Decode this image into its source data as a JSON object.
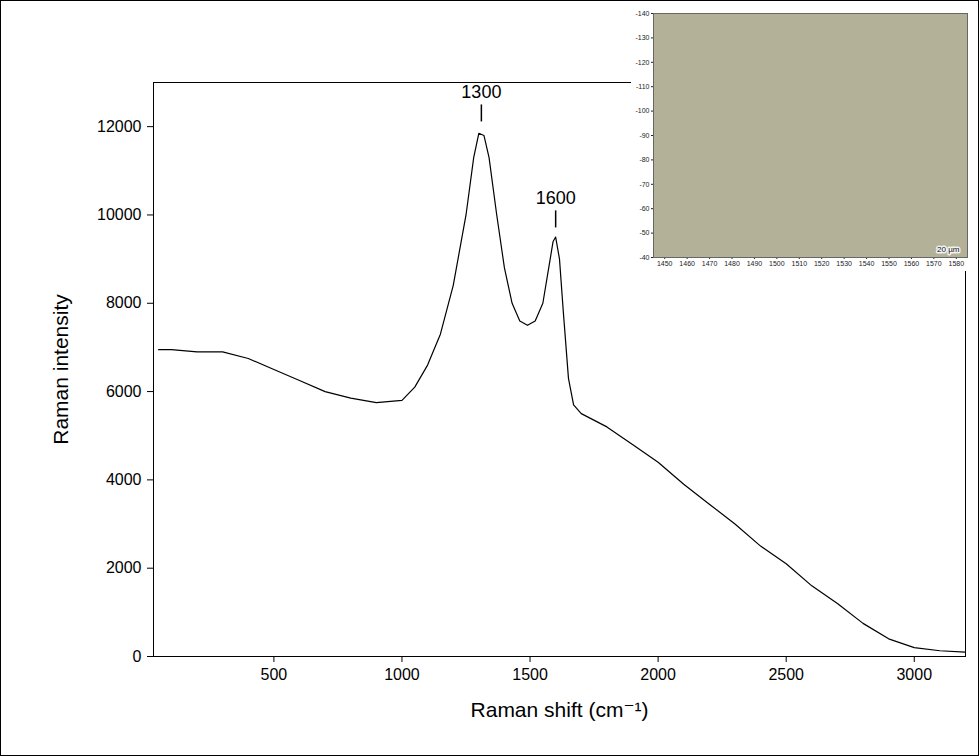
{
  "chart_data": [
    {
      "type": "line",
      "xlabel": "Raman shift (cm⁻¹)",
      "ylabel": "Raman intensity",
      "x": [
        50,
        100,
        200,
        300,
        400,
        500,
        600,
        700,
        800,
        900,
        1000,
        1050,
        1100,
        1150,
        1200,
        1250,
        1280,
        1300,
        1320,
        1340,
        1370,
        1400,
        1430,
        1460,
        1490,
        1520,
        1550,
        1570,
        1590,
        1600,
        1615,
        1630,
        1650,
        1670,
        1700,
        1800,
        1900,
        2000,
        2100,
        2200,
        2300,
        2400,
        2500,
        2600,
        2700,
        2800,
        2900,
        3000,
        3100,
        3200
      ],
      "values": [
        6950,
        6950,
        6900,
        6900,
        6750,
        6500,
        6250,
        6000,
        5850,
        5750,
        5800,
        6100,
        6600,
        7300,
        8400,
        10000,
        11300,
        11850,
        11800,
        11300,
        10000,
        8800,
        8000,
        7600,
        7500,
        7600,
        8000,
        8700,
        9400,
        9500,
        9000,
        7800,
        6300,
        5700,
        5500,
        5200,
        4800,
        4400,
        3900,
        3450,
        3000,
        2500,
        2100,
        1600,
        1200,
        750,
        400,
        200,
        130,
        100
      ],
      "color": "#000000",
      "xlim": [
        30,
        3200
      ],
      "ylim": [
        0,
        13000
      ],
      "xticks": [
        500,
        1000,
        1500,
        2000,
        2500,
        3000
      ],
      "yticks": [
        0,
        2000,
        4000,
        6000,
        8000,
        10000,
        12000
      ],
      "annotations": [
        {
          "text": "1300",
          "x": 1310,
          "y": 12050
        },
        {
          "text": "1600",
          "x": 1600,
          "y": 9650
        }
      ]
    },
    {
      "type": "image",
      "xlim": [
        1445,
        1585
      ],
      "ylim": [
        -40,
        -140
      ],
      "xticks": [
        1450,
        1460,
        1470,
        1480,
        1490,
        1500,
        1510,
        1520,
        1530,
        1540,
        1550,
        1560,
        1570,
        1580
      ],
      "yticks": [
        -140,
        -130,
        -120,
        -110,
        -100,
        -90,
        -80,
        -70,
        -60,
        -50,
        -40
      ],
      "annotations": [
        {
          "text": "20 µm"
        }
      ]
    }
  ]
}
